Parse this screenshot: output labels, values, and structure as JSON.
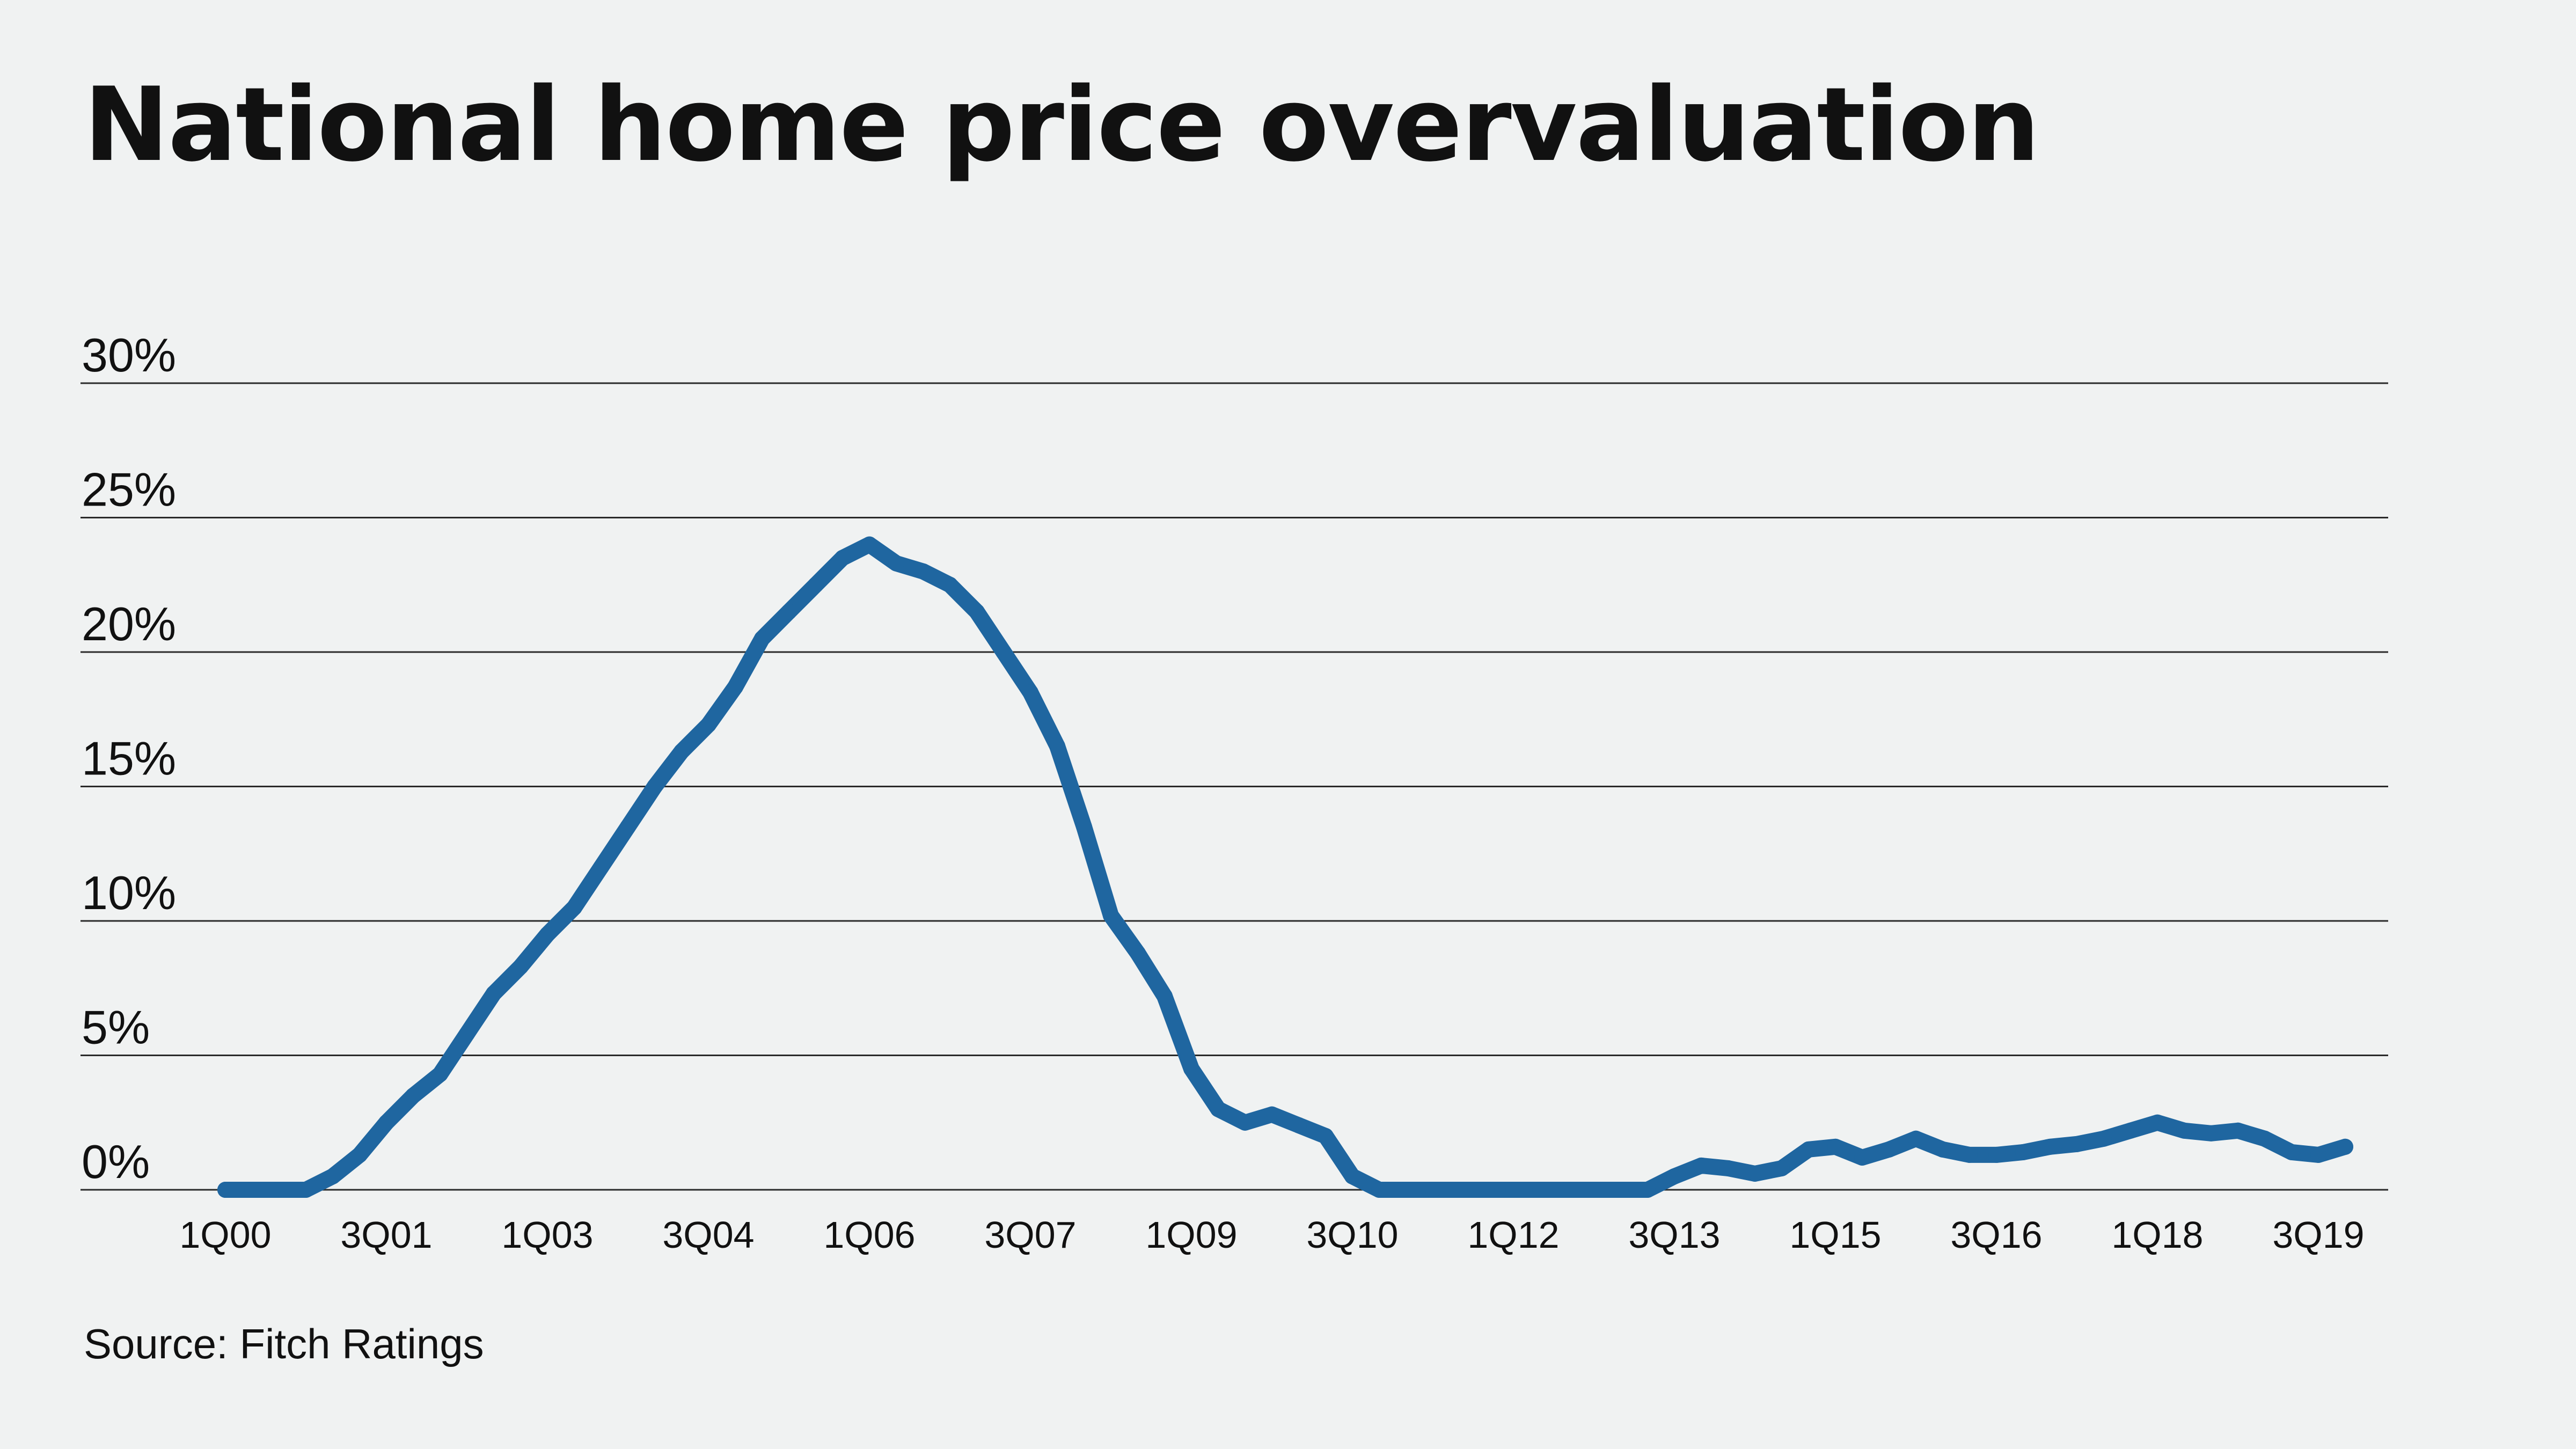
{
  "title": "National home price overvaluation",
  "source": "Source: Fitch Ratings",
  "chart_data": {
    "type": "line",
    "title": "National home price overvaluation",
    "xlabel": "",
    "ylabel": "",
    "ylim": [
      0,
      30
    ],
    "yticks": [
      0,
      5,
      10,
      15,
      20,
      25,
      30
    ],
    "ytick_labels": [
      "0%",
      "5%",
      "10%",
      "15%",
      "20%",
      "25%",
      "30%"
    ],
    "grid": true,
    "legend": "none",
    "line_color": "#1f66a0",
    "x_tick_labels": [
      "1Q00",
      "3Q01",
      "1Q03",
      "3Q04",
      "1Q06",
      "3Q07",
      "1Q09",
      "3Q10",
      "1Q12",
      "3Q13",
      "1Q15",
      "3Q16",
      "1Q18",
      "3Q19"
    ],
    "x": [
      "1Q00",
      "2Q00",
      "3Q00",
      "4Q00",
      "1Q01",
      "2Q01",
      "3Q01",
      "4Q01",
      "1Q02",
      "2Q02",
      "3Q02",
      "4Q02",
      "1Q03",
      "2Q03",
      "3Q03",
      "4Q03",
      "1Q04",
      "2Q04",
      "3Q04",
      "4Q04",
      "1Q05",
      "2Q05",
      "3Q05",
      "4Q05",
      "1Q06",
      "2Q06",
      "3Q06",
      "4Q06",
      "1Q07",
      "2Q07",
      "3Q07",
      "4Q07",
      "1Q08",
      "2Q08",
      "3Q08",
      "4Q08",
      "1Q09",
      "2Q09",
      "3Q09",
      "4Q09",
      "1Q10",
      "2Q10",
      "3Q10",
      "4Q10",
      "1Q11",
      "2Q11",
      "3Q11",
      "4Q11",
      "1Q12",
      "2Q12",
      "3Q12",
      "4Q12",
      "1Q13",
      "2Q13",
      "3Q13",
      "4Q13",
      "1Q14",
      "2Q14",
      "3Q14",
      "4Q14",
      "1Q15",
      "2Q15",
      "3Q15",
      "4Q15",
      "1Q16",
      "2Q16",
      "3Q16",
      "4Q16",
      "1Q17",
      "2Q17",
      "3Q17",
      "4Q17",
      "1Q18",
      "2Q18",
      "3Q18",
      "4Q18",
      "1Q19",
      "2Q19",
      "3Q19",
      "4Q19"
    ],
    "series": [
      {
        "values": [
          0,
          0,
          0,
          0,
          0.5,
          1.3,
          2.5,
          3.5,
          4.3,
          5.8,
          7.3,
          8.3,
          9.5,
          10.5,
          12.0,
          13.5,
          15.0,
          16.3,
          17.3,
          18.7,
          20.5,
          21.5,
          22.5,
          23.5,
          24.0,
          23.3,
          23.0,
          22.5,
          21.5,
          20.0,
          18.5,
          16.5,
          13.5,
          10.2,
          8.8,
          7.2,
          4.5,
          3.0,
          2.5,
          2.8,
          2.4,
          2.0,
          0.5,
          0,
          0,
          0,
          0,
          0,
          0,
          0,
          0,
          0,
          0,
          0,
          0.5,
          0.9,
          0.8,
          0.6,
          0.8,
          1.5,
          1.6,
          1.2,
          1.5,
          1.9,
          1.5,
          1.3,
          1.3,
          1.4,
          1.6,
          1.7,
          1.9,
          2.2,
          2.5,
          2.2,
          2.1,
          2.2,
          1.9,
          1.4,
          1.3,
          1.6
        ]
      }
    ]
  }
}
